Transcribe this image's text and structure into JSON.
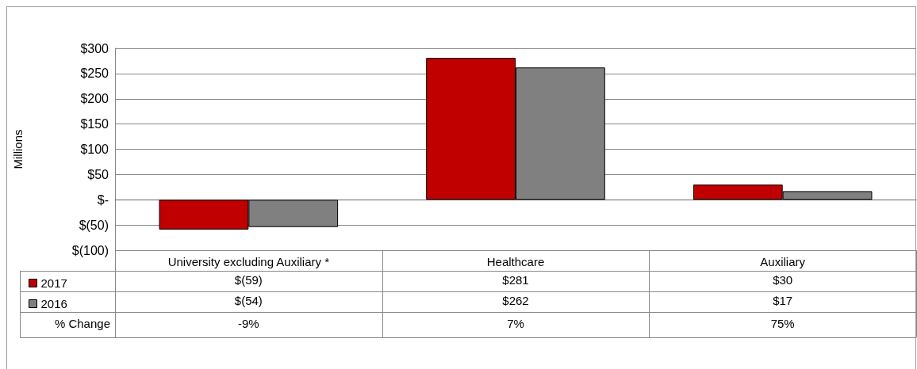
{
  "chart_data": {
    "type": "bar",
    "ylabel": "Millions",
    "categories": [
      "University excluding Auxiliary *",
      "Healthcare",
      "Auxiliary"
    ],
    "series": [
      {
        "name": "2017",
        "color": "#c00000",
        "values": [
          -59,
          281,
          30
        ],
        "value_labels": [
          "$(59)",
          "$281",
          "$30"
        ]
      },
      {
        "name": "2016",
        "color": "#808080",
        "values": [
          -54,
          262,
          17
        ],
        "value_labels": [
          "$(54)",
          "$262",
          "$17"
        ]
      }
    ],
    "ylim": [
      -100,
      300
    ],
    "yticks": [
      {
        "value": -100,
        "label": "$(100)"
      },
      {
        "value": -50,
        "label": "$(50)"
      },
      {
        "value": 0,
        "label": "$-"
      },
      {
        "value": 50,
        "label": "$50"
      },
      {
        "value": 100,
        "label": "$100"
      },
      {
        "value": 150,
        "label": "$150"
      },
      {
        "value": 200,
        "label": "$200"
      },
      {
        "value": 250,
        "label": "$250"
      },
      {
        "value": 300,
        "label": "$300"
      }
    ],
    "grid": "y",
    "legend": "bottom",
    "annotations": [
      "% Change",
      "-9%",
      "7%",
      "75%"
    ]
  }
}
